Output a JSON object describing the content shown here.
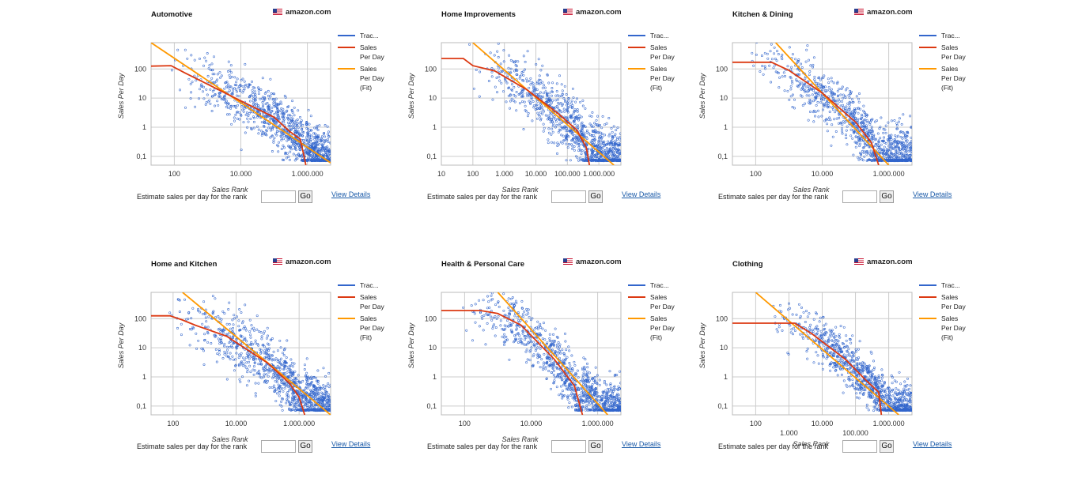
{
  "common": {
    "site_label": "amazon.com",
    "estimate_label": "Estimate sales per day for the rank",
    "go_label": "Go",
    "details_label": "View Details",
    "ylabel": "Sales Per Day",
    "xlabel": "Sales Rank",
    "legend": [
      "Trac...",
      "Sales Per Day",
      "Sales Per Day (Fit)"
    ],
    "colors": {
      "tracked": "#3366cc",
      "curve": "#dc3912",
      "fit": "#ff9900",
      "grid": "#cccccc"
    }
  },
  "chart_data": [
    {
      "type": "scatter",
      "title": "Automotive",
      "xlabel": "Sales Rank",
      "ylabel": "Sales Per Day",
      "xscale": "log",
      "yscale": "log",
      "xlim": [
        20,
        5000000
      ],
      "ylim": [
        0.05,
        800
      ],
      "x_ticks": [
        "100",
        "10.000",
        "1.000.000"
      ],
      "y_ticks": [
        "0,1",
        "1",
        "10",
        "100"
      ],
      "grid": true,
      "legend_position": "right",
      "series": [
        {
          "name": "Trac...",
          "kind": "scatter",
          "spread": 0.45,
          "min_x": 60
        },
        {
          "name": "Sales Per Day",
          "kind": "line",
          "points": [
            [
              20,
              125
            ],
            [
              80,
              130
            ],
            [
              200,
              75
            ],
            [
              1000,
              30
            ],
            [
              10000,
              8
            ],
            [
              100000,
              2.2
            ],
            [
              300000,
              0.7
            ],
            [
              600000,
              0.4
            ],
            [
              800000,
              0.1
            ],
            [
              900000,
              0.05
            ]
          ]
        },
        {
          "name": "Sales Per Day (Fit)",
          "kind": "line",
          "points": [
            [
              20,
              800
            ],
            [
              5000000,
              0.06
            ]
          ]
        }
      ]
    },
    {
      "type": "scatter",
      "title": "Home Improvements",
      "xlabel": "Sales Rank",
      "ylabel": "Sales Per Day",
      "xscale": "log",
      "yscale": "log",
      "xlim": [
        10,
        5000000
      ],
      "ylim": [
        0.05,
        800
      ],
      "x_ticks": [
        "10",
        "100",
        "1.000",
        "10.000",
        "100.000",
        "1.000.000"
      ],
      "y_ticks": [
        "0,1",
        "1",
        "10",
        "100"
      ],
      "grid": true,
      "legend_position": "right",
      "series": [
        {
          "name": "Trac...",
          "kind": "scatter",
          "spread": 0.5,
          "min_x": 60
        },
        {
          "name": "Sales Per Day",
          "kind": "line",
          "points": [
            [
              10,
              230
            ],
            [
              50,
              230
            ],
            [
              100,
              130
            ],
            [
              500,
              85
            ],
            [
              5000,
              20
            ],
            [
              50000,
              3
            ],
            [
              200000,
              0.8
            ],
            [
              400000,
              0.2
            ],
            [
              500000,
              0.05
            ]
          ]
        },
        {
          "name": "Sales Per Day (Fit)",
          "kind": "line",
          "points": [
            [
              100,
              800
            ],
            [
              3000000,
              0.05
            ]
          ]
        }
      ]
    },
    {
      "type": "scatter",
      "title": "Kitchen & Dining",
      "xlabel": "Sales Rank",
      "ylabel": "Sales Per Day",
      "xscale": "log",
      "yscale": "log",
      "xlim": [
        20,
        5000000
      ],
      "ylim": [
        0.05,
        800
      ],
      "x_ticks": [
        "100",
        "10.000",
        "1.000.000"
      ],
      "y_ticks": [
        "0,1",
        "1",
        "10",
        "100"
      ],
      "grid": true,
      "legend_position": "right",
      "series": [
        {
          "name": "Trac...",
          "kind": "scatter",
          "spread": 0.5,
          "min_x": 40
        },
        {
          "name": "Sales Per Day",
          "kind": "line",
          "points": [
            [
              20,
              170
            ],
            [
              300,
              170
            ],
            [
              1000,
              90
            ],
            [
              10000,
              15
            ],
            [
              100000,
              1.5
            ],
            [
              300000,
              0.3
            ],
            [
              500000,
              0.05
            ]
          ]
        },
        {
          "name": "Sales Per Day (Fit)",
          "kind": "line",
          "points": [
            [
              400,
              800
            ],
            [
              1000000,
              0.05
            ]
          ]
        }
      ]
    },
    {
      "type": "scatter",
      "title": "Home and Kitchen",
      "xlabel": "Sales Rank",
      "ylabel": "Sales Per Day",
      "xscale": "log",
      "yscale": "log",
      "xlim": [
        20,
        10000000
      ],
      "ylim": [
        0.05,
        800
      ],
      "x_ticks": [
        "100",
        "10.000",
        "1.000.000"
      ],
      "y_ticks": [
        "0,1",
        "1",
        "10",
        "100"
      ],
      "grid": true,
      "legend_position": "right",
      "series": [
        {
          "name": "Trac...",
          "kind": "scatter",
          "spread": 0.5,
          "min_x": 60
        },
        {
          "name": "Sales Per Day",
          "kind": "line",
          "points": [
            [
              20,
              125
            ],
            [
              80,
              125
            ],
            [
              200,
              90
            ],
            [
              500,
              60
            ],
            [
              5000,
              25
            ],
            [
              100000,
              3
            ],
            [
              500000,
              0.6
            ],
            [
              1000000,
              0.2
            ],
            [
              1500000,
              0.05
            ]
          ]
        },
        {
          "name": "Sales Per Day (Fit)",
          "kind": "line",
          "points": [
            [
              200,
              800
            ],
            [
              10000000,
              0.05
            ]
          ]
        }
      ]
    },
    {
      "type": "scatter",
      "title": "Health & Personal Care",
      "xlabel": "Sales Rank",
      "ylabel": "Sales Per Day",
      "xscale": "log",
      "yscale": "log",
      "xlim": [
        20,
        5000000
      ],
      "ylim": [
        0.05,
        800
      ],
      "x_ticks": [
        "100",
        "10.000",
        "1.000.000"
      ],
      "y_ticks": [
        "0,1",
        "1",
        "10",
        "100"
      ],
      "grid": true,
      "legend_position": "right",
      "series": [
        {
          "name": "Trac...",
          "kind": "scatter",
          "spread": 0.45,
          "min_x": 40
        },
        {
          "name": "Sales Per Day",
          "kind": "line",
          "points": [
            [
              20,
              190
            ],
            [
              300,
              190
            ],
            [
              1000,
              150
            ],
            [
              5000,
              60
            ],
            [
              50000,
              4
            ],
            [
              200000,
              0.5
            ],
            [
              350000,
              0.05
            ]
          ]
        },
        {
          "name": "Sales Per Day (Fit)",
          "kind": "line",
          "points": [
            [
              1000,
              800
            ],
            [
              2000000,
              0.05
            ]
          ]
        }
      ]
    },
    {
      "type": "scatter",
      "title": "Clothing",
      "xlabel": "Sales Rank",
      "ylabel": "Sales Per Day",
      "xscale": "log",
      "yscale": "log",
      "xlim": [
        20,
        5000000
      ],
      "ylim": [
        0.05,
        800
      ],
      "x_ticks": [
        "100",
        "1.000",
        "10.000",
        "100.000",
        "1.000.000"
      ],
      "y_ticks": [
        "0,1",
        "1",
        "10",
        "100"
      ],
      "grid": true,
      "legend_position": "right",
      "series": [
        {
          "name": "Trac...",
          "kind": "scatter",
          "spread": 0.4,
          "min_x": 200
        },
        {
          "name": "Sales Per Day",
          "kind": "line",
          "points": [
            [
              20,
              70
            ],
            [
              1500,
              70
            ],
            [
              5000,
              30
            ],
            [
              50000,
              4
            ],
            [
              200000,
              0.8
            ],
            [
              500000,
              0.3
            ],
            [
              600000,
              0.05
            ]
          ]
        },
        {
          "name": "Sales Per Day (Fit)",
          "kind": "line",
          "points": [
            [
              100,
              800
            ],
            [
              2000000,
              0.05
            ]
          ]
        }
      ]
    }
  ]
}
